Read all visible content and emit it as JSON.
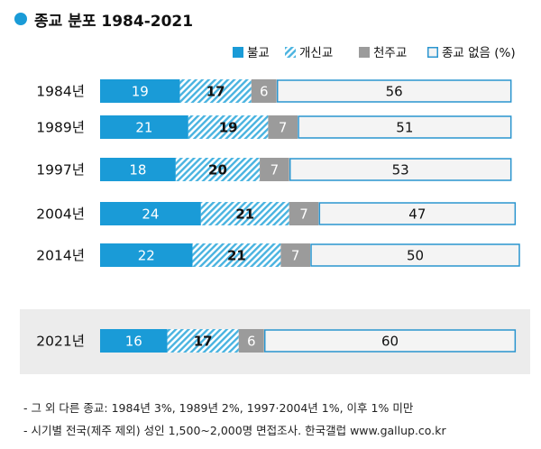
{
  "title": "종교 분포 1984-2021",
  "chart_data": {
    "type": "bar",
    "stacked": "horizontal-100",
    "legend_position": "top-right",
    "legend_suffix": "(%)",
    "categories": [
      "1984년",
      "1989년",
      "1997년",
      "2004년",
      "2014년",
      "2021년"
    ],
    "series": [
      {
        "name": "불교",
        "values": [
          19,
          21,
          18,
          24,
          22,
          16
        ],
        "color": "#1a9bd7",
        "style": "solid"
      },
      {
        "name": "개신교",
        "values": [
          17,
          19,
          20,
          21,
          21,
          17
        ],
        "color": "#49b3e0",
        "style": "hatched"
      },
      {
        "name": "천주교",
        "values": [
          6,
          7,
          7,
          7,
          7,
          6
        ],
        "color": "#9b9b9b",
        "style": "solid"
      },
      {
        "name": "종교 없음",
        "values": [
          56,
          51,
          53,
          47,
          50,
          60
        ],
        "color": "#f4f4f4",
        "style": "outlined",
        "border": "#2a95cf"
      }
    ],
    "highlighted_category": "2021년",
    "highlight_color": "#ececec"
  },
  "footnotes": [
    "- 그 외 다른 종교: 1984년 3%, 1989년 2%, 1997·2004년 1%, 이후 1% 미만",
    "- 시기별 전국(제주 제외) 성인 1,500~2,000명 면접조사. 한국갤럽 www.gallup.co.kr"
  ]
}
